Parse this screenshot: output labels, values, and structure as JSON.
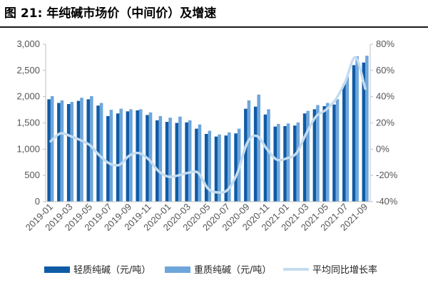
{
  "title": "图 21: 年纯碱市场价（中间价）及增速",
  "chart_data": {
    "type": "bar",
    "categories": [
      "2019-01",
      "2019-02",
      "2019-03",
      "2019-04",
      "2019-05",
      "2019-06",
      "2019-07",
      "2019-08",
      "2019-09",
      "2019-10",
      "2019-11",
      "2019-12",
      "2020-01",
      "2020-02",
      "2020-03",
      "2020-04",
      "2020-05",
      "2020-06",
      "2020-07",
      "2020-08",
      "2020-09",
      "2020-10",
      "2020-11",
      "2020-12",
      "2021-01",
      "2021-02",
      "2021-03",
      "2021-04",
      "2021-05",
      "2021-06",
      "2021-07",
      "2021-08",
      "2021-09"
    ],
    "x_tick_labels": [
      "2019-01",
      "2019-03",
      "2019-05",
      "2019-07",
      "2019-09",
      "2019-11",
      "2020-01",
      "2020-03",
      "2020-05",
      "2020-07",
      "2020-09",
      "2020-11",
      "2021-01",
      "2021-03",
      "2021-05",
      "2021-07",
      "2021-09"
    ],
    "series": [
      {
        "name": "轻质纯碱（元/吨）",
        "type": "bar",
        "axis": "left",
        "color": "#0f5ba6",
        "values": [
          1950,
          1880,
          1860,
          1920,
          1950,
          1830,
          1630,
          1680,
          1720,
          1740,
          1650,
          1550,
          1520,
          1500,
          1510,
          1390,
          1290,
          1240,
          1260,
          1300,
          1770,
          1810,
          1660,
          1430,
          1440,
          1450,
          1680,
          1760,
          1820,
          1850,
          2240,
          2600,
          2650
        ]
      },
      {
        "name": "重质纯碱（元/吨）",
        "type": "bar",
        "axis": "right",
        "color": "#6ea6db",
        "values": [
          2010,
          1930,
          1900,
          1980,
          2010,
          1880,
          1750,
          1770,
          1760,
          1760,
          1700,
          1630,
          1600,
          1620,
          1550,
          1470,
          1350,
          1280,
          1320,
          1390,
          1930,
          2040,
          1760,
          1480,
          1490,
          1510,
          1730,
          1840,
          1880,
          1950,
          2380,
          2770,
          2780
        ]
      },
      {
        "name": "平均同比增长率",
        "type": "line",
        "axis": "right",
        "color": "#c5dcef",
        "values": [
          0.06,
          0.12,
          0.1,
          0.07,
          0.03,
          -0.05,
          -0.11,
          -0.12,
          -0.05,
          -0.03,
          -0.08,
          -0.17,
          -0.21,
          -0.2,
          -0.18,
          -0.18,
          -0.3,
          -0.33,
          -0.31,
          -0.18,
          0.05,
          0.1,
          0.0,
          -0.08,
          -0.07,
          -0.03,
          0.12,
          0.25,
          0.3,
          0.38,
          0.52,
          0.7,
          0.46
        ]
      }
    ],
    "y_left": {
      "min": 0,
      "max": 3000,
      "ticks": [
        "0",
        "500",
        "1,000",
        "1,500",
        "2,000",
        "2,500",
        "3,000"
      ]
    },
    "y_right": {
      "min": -0.4,
      "max": 0.8,
      "ticks": [
        "-40%",
        "-20%",
        "0%",
        "20%",
        "40%",
        "60%",
        "80%"
      ]
    },
    "grid": false,
    "legend_position": "bottom"
  }
}
